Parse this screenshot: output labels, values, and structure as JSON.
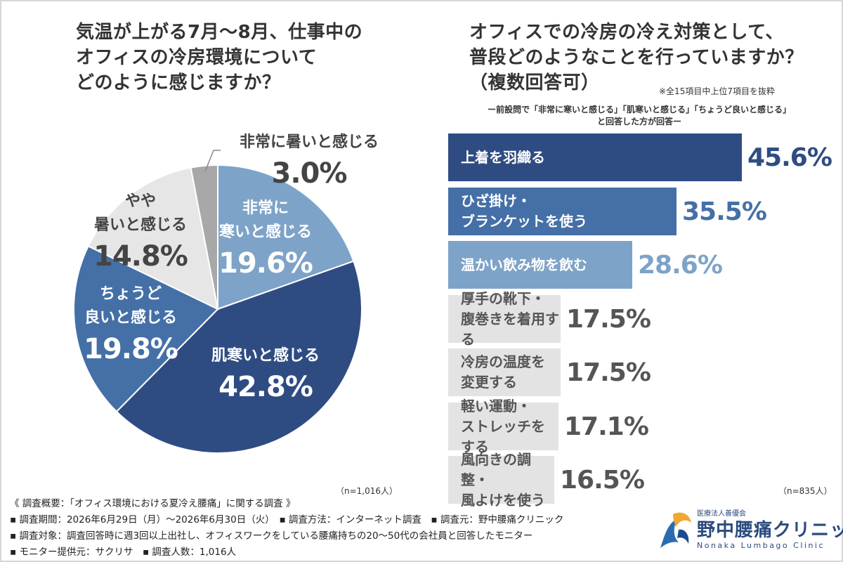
{
  "chart_data": [
    {
      "type": "pie",
      "title": "気温が上がる7月〜8月、仕事中の\nオフィスの冷房環境について\nどのように感じますか？",
      "n_note": "（n=1,016人）",
      "slices": [
        {
          "label": "非常に\n寒いと感じる",
          "value": 19.6,
          "display": "19.6%",
          "color": "#7ea3c8"
        },
        {
          "label": "肌寒いと感じる",
          "value": 42.8,
          "display": "42.8%",
          "color": "#2f4c82"
        },
        {
          "label": "ちょうど\n良いと感じる",
          "value": 19.8,
          "display": "19.8%",
          "color": "#4470a7"
        },
        {
          "label": "やや\n暑いと感じる",
          "value": 14.8,
          "display": "14.8%",
          "color": "#e6e6e6"
        },
        {
          "label": "非常に暑いと感じる",
          "value": 3.0,
          "display": "3.0%",
          "color": "#a8a8a8"
        }
      ]
    },
    {
      "type": "bar",
      "orientation": "horizontal",
      "title": "オフィスでの冷房の冷え対策として、\n普段どのようなことを行っていますか？\n（複数回答可）",
      "note_top": "※全15項目中上位7項目を抜粋",
      "subtitle": "ー前設問で「非常に寒いと感じる」「肌寒いと感じる」「ちょうど良いと感じる」\nと回答した方が回答ー",
      "n_note": "（n=835人）",
      "categories": [
        "上着を羽織る",
        "ひざ掛け・\nブランケットを使う",
        "温かい飲み物を飲む",
        "厚手の靴下・\n腹巻きを着用する",
        "冷房の温度を\n変更する",
        "軽い運動・\nストレッチをする",
        "風向きの調整・\n風よけを使う"
      ],
      "values": [
        45.6,
        35.5,
        28.6,
        17.5,
        17.5,
        17.1,
        16.5
      ],
      "display": [
        "45.6%",
        "35.5%",
        "28.6%",
        "17.5%",
        "17.5%",
        "17.1%",
        "16.5%"
      ],
      "colors": [
        "#2f4c82",
        "#4470a7",
        "#7ea3c8",
        "#e3e3e3",
        "#e3e3e3",
        "#e3e3e3",
        "#e3e3e3"
      ],
      "value_colors": [
        "#2f4c82",
        "#4470a7",
        "#7ea3c8",
        "#555555",
        "#555555",
        "#555555",
        "#555555"
      ],
      "label_colors": [
        "#ffffff",
        "#ffffff",
        "#ffffff",
        "#555555",
        "#555555",
        "#555555",
        "#555555"
      ]
    }
  ],
  "footer": {
    "overview": "《 調査概要：「オフィス環境における夏冷え腰痛」に関する調査 》",
    "period": "▪ 調査期間：2026年6月29日（月）〜2026年6月30日（火）　▪ 調査方法：インターネット調査　▪ 調査元：野中腰痛クリニック",
    "target": "▪ 調査対象：調査回答時に週3回以上出社し、オフィスワークをしている腰痛持ちの20〜50代の会社員と回答したモニター",
    "provider": "▪ モニター提供元：サクリサ　▪ 調査人数：1,016人"
  },
  "logo": {
    "small": "医療法人善優会",
    "name": "野中腰痛クリニック",
    "english": "Nonaka Lumbago Clinic"
  }
}
